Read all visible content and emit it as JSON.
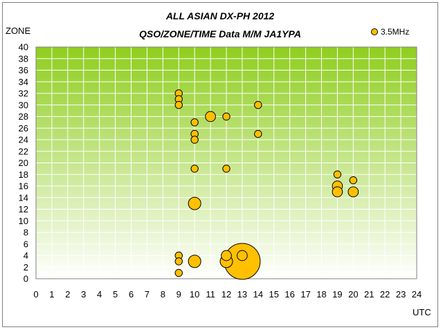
{
  "chart_data": {
    "type": "scatter",
    "title": "ALL ASIAN DX-PH 2012",
    "subtitle": "QSO/ZONE/TIME Data M/M JA1YPA",
    "xlabel": "UTC",
    "ylabel": "ZONE",
    "xlim": [
      0,
      24
    ],
    "ylim": [
      0,
      40
    ],
    "x_ticks": [
      "0",
      "1",
      "2",
      "3",
      "4",
      "5",
      "6",
      "7",
      "8",
      "9",
      "10",
      "11",
      "12",
      "13",
      "14",
      "15",
      "16",
      "17",
      "18",
      "19",
      "20",
      "21",
      "22",
      "23",
      "24"
    ],
    "y_ticks": [
      "0",
      "2",
      "4",
      "6",
      "8",
      "10",
      "12",
      "14",
      "16",
      "18",
      "20",
      "22",
      "24",
      "26",
      "28",
      "30",
      "32",
      "34",
      "36",
      "38",
      "40"
    ],
    "grid": true,
    "legend_position": "top-right",
    "colors": {
      "marker_fill": "#ffc000",
      "marker_stroke": "#000000",
      "plot_top": "#8fce1e",
      "plot_bottom": "#ffffff",
      "grid": "#ffffff"
    },
    "series": [
      {
        "name": "3.5MHz",
        "points": [
          {
            "x": 9,
            "y": 32,
            "qso": 1
          },
          {
            "x": 9,
            "y": 31,
            "qso": 1
          },
          {
            "x": 9,
            "y": 30,
            "qso": 1
          },
          {
            "x": 9,
            "y": 4,
            "qso": 1
          },
          {
            "x": 9,
            "y": 3,
            "qso": 1
          },
          {
            "x": 9,
            "y": 1,
            "qso": 1
          },
          {
            "x": 10,
            "y": 27,
            "qso": 1
          },
          {
            "x": 10,
            "y": 25,
            "qso": 1
          },
          {
            "x": 10,
            "y": 24,
            "qso": 1
          },
          {
            "x": 10,
            "y": 19,
            "qso": 1
          },
          {
            "x": 10,
            "y": 13,
            "qso": 3
          },
          {
            "x": 10,
            "y": 3,
            "qso": 3
          },
          {
            "x": 11,
            "y": 28,
            "qso": 2
          },
          {
            "x": 12,
            "y": 28,
            "qso": 1
          },
          {
            "x": 12,
            "y": 19,
            "qso": 1
          },
          {
            "x": 12,
            "y": 4,
            "qso": 2
          },
          {
            "x": 12,
            "y": 3,
            "qso": 3
          },
          {
            "x": 13,
            "y": 3,
            "qso": 25
          },
          {
            "x": 13,
            "y": 4,
            "qso": 2
          },
          {
            "x": 14,
            "y": 30,
            "qso": 1
          },
          {
            "x": 14,
            "y": 25,
            "qso": 1
          },
          {
            "x": 19,
            "y": 18,
            "qso": 1
          },
          {
            "x": 19,
            "y": 16,
            "qso": 2
          },
          {
            "x": 19,
            "y": 15,
            "qso": 2
          },
          {
            "x": 20,
            "y": 17,
            "qso": 1
          },
          {
            "x": 20,
            "y": 15,
            "qso": 2
          }
        ]
      }
    ]
  }
}
